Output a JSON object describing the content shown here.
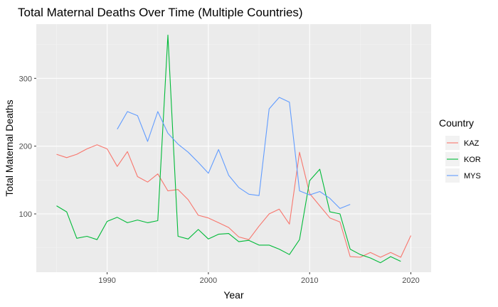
{
  "chart_data": {
    "type": "line",
    "title": "Total Maternal Deaths Over Time (Multiple Countries)",
    "xlabel": "Year",
    "ylabel": "Total Maternal Deaths",
    "xlim": [
      1983,
      2022
    ],
    "ylim": [
      14,
      380
    ],
    "xticks": [
      1990,
      2000,
      2010,
      2020
    ],
    "yticks": [
      100,
      200,
      300
    ],
    "grid": true,
    "legend": {
      "title": "Country",
      "position": "right"
    },
    "colors": {
      "panel": "#ebebeb",
      "grid_major": "#ffffff",
      "grid_minor": "#f4f4f4"
    },
    "series": [
      {
        "name": "KAZ",
        "color": "#F8766D",
        "x": [
          1985,
          1986,
          1987,
          1988,
          1989,
          1990,
          1991,
          1992,
          1993,
          1994,
          1995,
          1996,
          1997,
          1998,
          1999,
          2000,
          2001,
          2002,
          2003,
          2004,
          2005,
          2006,
          2007,
          2008,
          2009,
          2010,
          2011,
          2012,
          2013,
          2014,
          2015,
          2016,
          2017,
          2018,
          2019,
          2020
        ],
        "y": [
          188,
          183,
          188,
          196,
          202,
          196,
          170,
          192,
          155,
          147,
          159,
          134,
          136,
          121,
          98,
          94,
          87,
          80,
          66,
          62,
          82,
          100,
          107,
          85,
          191,
          130,
          112,
          94,
          88,
          37,
          36,
          43,
          36,
          43,
          36,
          68
        ]
      },
      {
        "name": "KOR",
        "color": "#00BA38",
        "x": [
          1985,
          1986,
          1987,
          1988,
          1989,
          1990,
          1991,
          1992,
          1993,
          1994,
          1995,
          1996,
          1997,
          1998,
          1999,
          2000,
          2001,
          2002,
          2003,
          2004,
          2005,
          2006,
          2007,
          2008,
          2009,
          2010,
          2011,
          2012,
          2013,
          2014,
          2015,
          2016,
          2017,
          2018,
          2019
        ],
        "y": [
          112,
          103,
          64,
          67,
          62,
          89,
          95,
          87,
          91,
          87,
          90,
          364,
          67,
          63,
          77,
          63,
          70,
          71,
          59,
          61,
          54,
          54,
          48,
          40,
          62,
          149,
          166,
          103,
          100,
          48,
          40,
          35,
          28,
          37,
          30
        ]
      },
      {
        "name": "MYS",
        "color": "#619CFF",
        "x": [
          1991,
          1992,
          1993,
          1994,
          1995,
          1996,
          1997,
          1998,
          1999,
          2000,
          2001,
          2002,
          2003,
          2004,
          2005,
          2006,
          2007,
          2008,
          2009,
          2010,
          2011,
          2012,
          2013,
          2014
        ],
        "y": [
          225,
          251,
          245,
          207,
          251,
          219,
          203,
          191,
          176,
          160,
          195,
          157,
          139,
          129,
          127,
          255,
          272,
          265,
          134,
          128,
          133,
          123,
          108,
          114
        ]
      }
    ]
  }
}
